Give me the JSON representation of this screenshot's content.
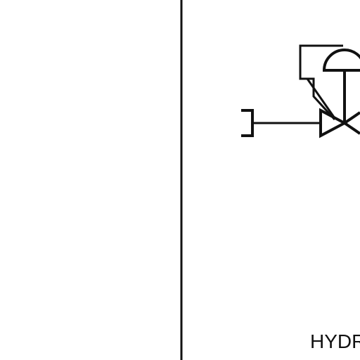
{
  "diagram": {
    "label": "HYDR",
    "ink_color": "#111111",
    "background_color": "#ffffff"
  }
}
